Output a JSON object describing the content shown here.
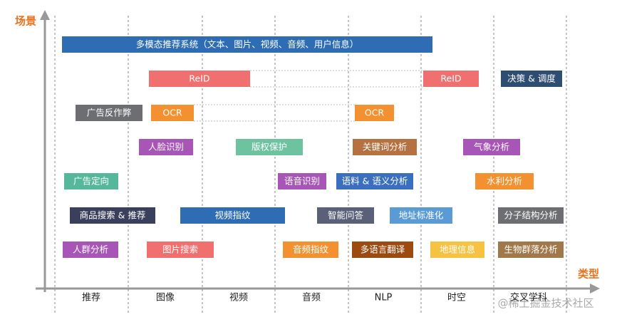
{
  "axes": {
    "y_label": "场景",
    "x_label": "类型"
  },
  "columns": [
    "推荐",
    "图像",
    "视频",
    "音频",
    "NLP",
    "时空",
    "交叉学科"
  ],
  "boxes": [
    {
      "label": "多模态推荐系统（文本、图片、视频、音频、用户信息）"
    },
    {
      "label": "ReID"
    },
    {
      "label": "ReID"
    },
    {
      "label": "决策 & 调度"
    },
    {
      "label": "广告反作弊"
    },
    {
      "label": "OCR"
    },
    {
      "label": "OCR"
    },
    {
      "label": "人脸识别"
    },
    {
      "label": "版权保护"
    },
    {
      "label": "关键词分析"
    },
    {
      "label": "气象分析"
    },
    {
      "label": "广告定向"
    },
    {
      "label": "语音识别"
    },
    {
      "label": "语料 & 语义分析"
    },
    {
      "label": "水利分析"
    },
    {
      "label": "商品搜索 & 推荐"
    },
    {
      "label": "视频指纹"
    },
    {
      "label": "智能问答"
    },
    {
      "label": "地址标准化"
    },
    {
      "label": "分子结构分析"
    },
    {
      "label": "人群分析"
    },
    {
      "label": "图片搜索"
    },
    {
      "label": "音频指纹"
    },
    {
      "label": "多语言翻译"
    },
    {
      "label": "地理信息"
    },
    {
      "label": "生物群落分析"
    }
  ],
  "watermark": "@稀土掘金技术社区"
}
